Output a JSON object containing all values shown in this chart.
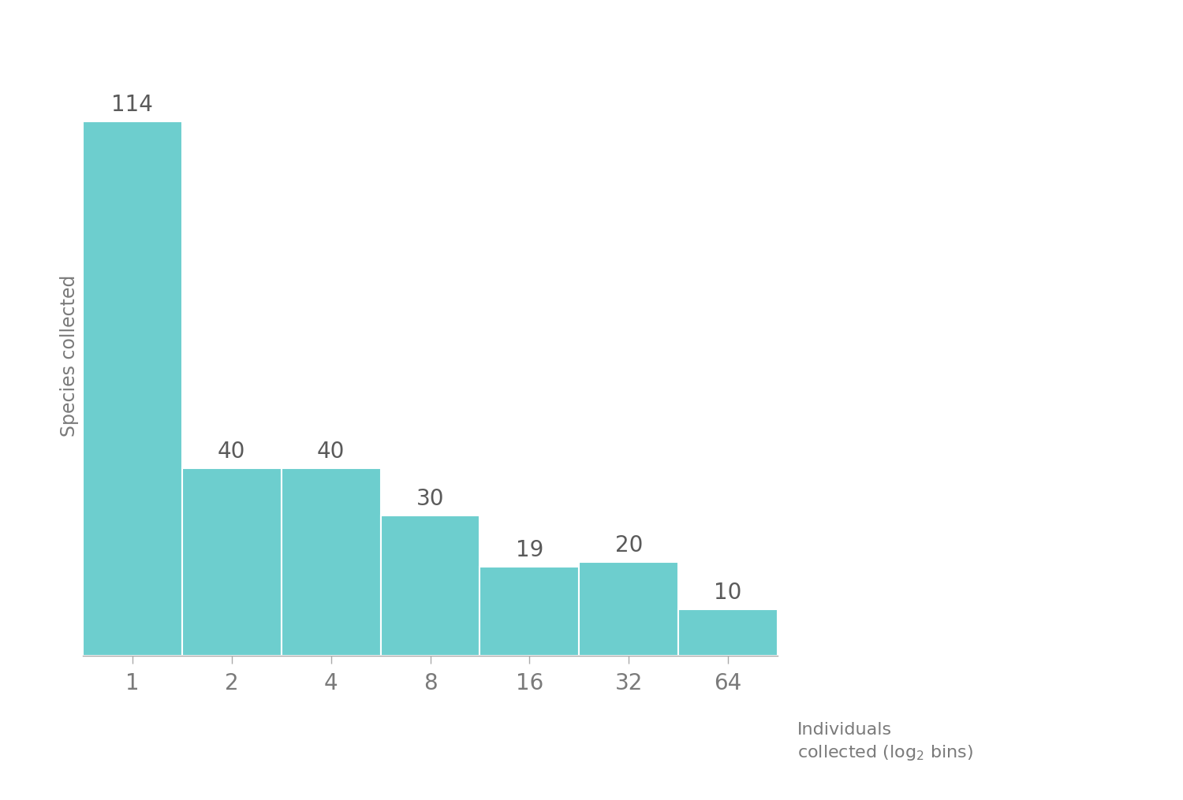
{
  "categories": [
    "1",
    "2",
    "4",
    "8",
    "16",
    "32",
    "64"
  ],
  "values": [
    114,
    40,
    40,
    30,
    19,
    20,
    10
  ],
  "bar_color": "#6DCECE",
  "bar_edge_color": "#ffffff",
  "background_color": "#ffffff",
  "ylabel": "Species collected",
  "xlabel_line1": "Individuals",
  "xlabel_line2": "collected (log$_2$ bins)",
  "label_color": "#7a7a7a",
  "bar_label_color": "#5a5a5a",
  "bar_label_fontsize": 20,
  "ylabel_fontsize": 17,
  "xlabel_fontsize": 16,
  "tick_label_fontsize": 20,
  "ylim": [
    0,
    128
  ],
  "bar_width": 1.0
}
